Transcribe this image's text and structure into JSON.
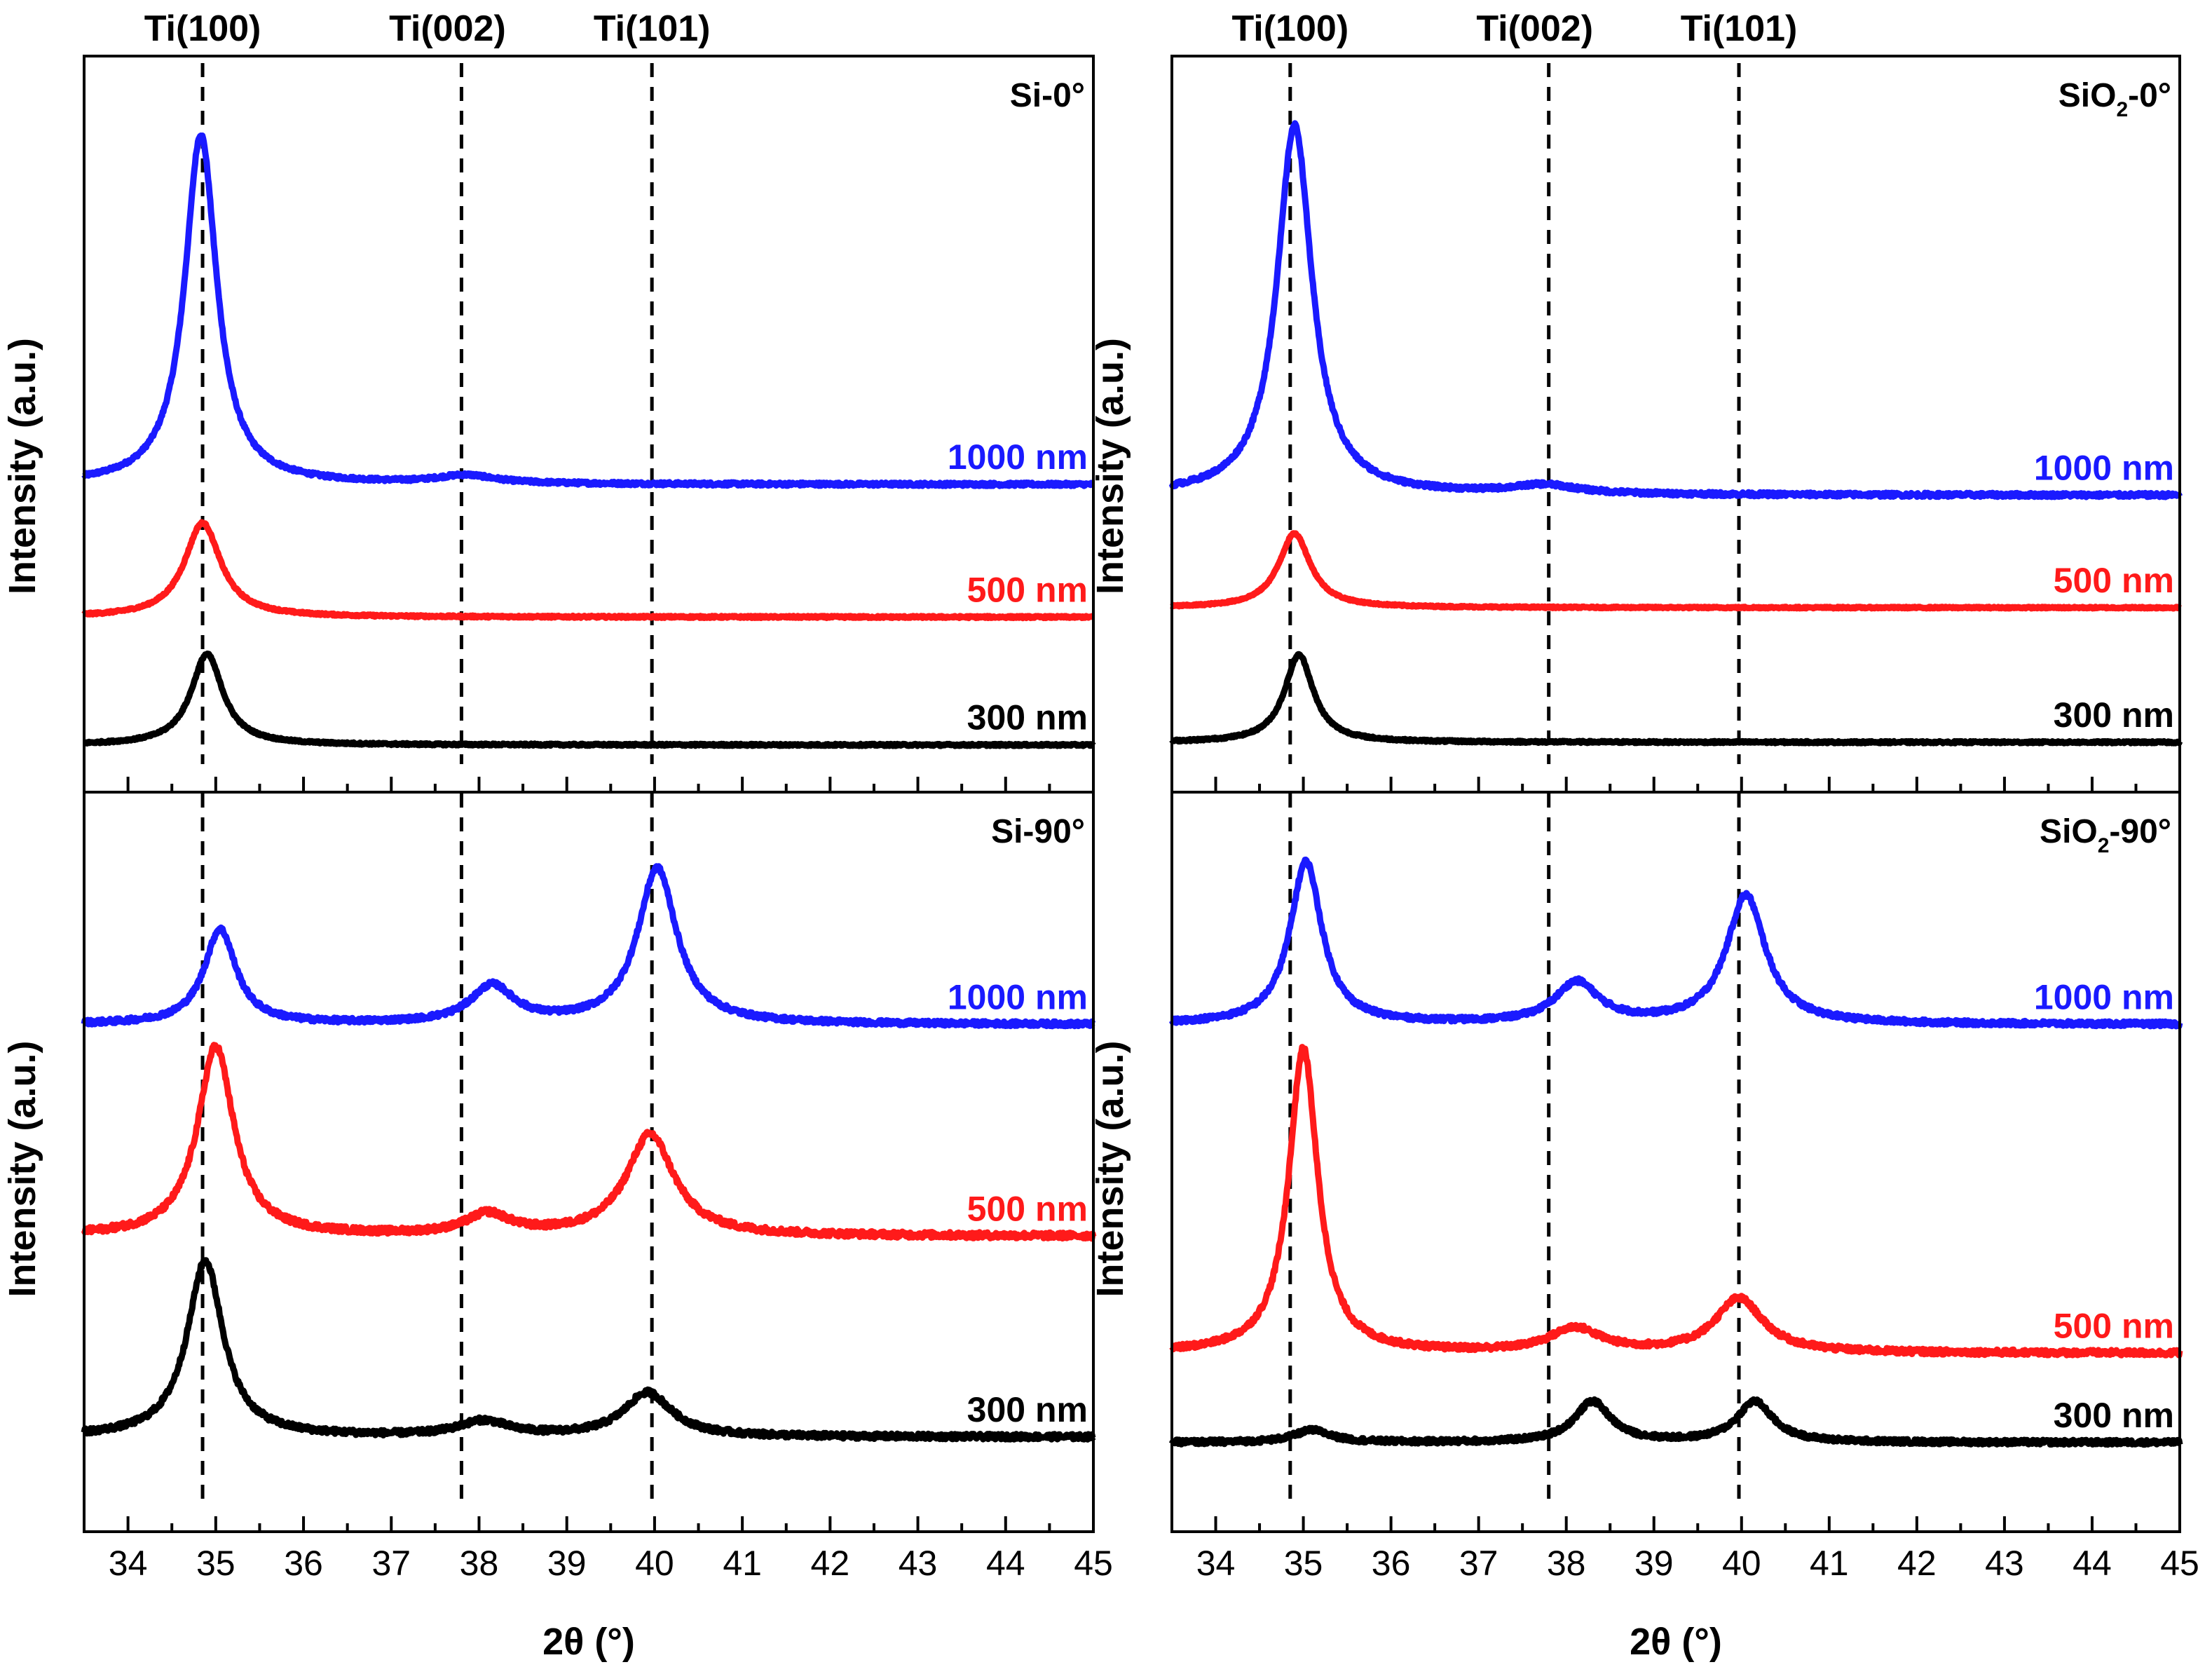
{
  "colors": {
    "1000 nm": "#1a1aff",
    "500 nm": "#ff1a1a",
    "300 nm": "#000000",
    "axis": "#000000",
    "refline": "#000000"
  },
  "reference_peaks": [
    {
      "label": "Ti(100)",
      "two_theta": 34.85
    },
    {
      "label": "Ti(002)",
      "two_theta": 37.8
    },
    {
      "label": "Ti(101)",
      "two_theta": 39.97
    }
  ],
  "shared_axes": {
    "xlabel": "2θ (°)",
    "ylabel": "Intensity (a.u.)",
    "xlim": [
      33.5,
      45
    ],
    "xticks": [
      34,
      35,
      36,
      37,
      38,
      39,
      40,
      41,
      42,
      43,
      44,
      45
    ],
    "y_units": "arbitrary"
  },
  "chart_data": [
    {
      "type": "line",
      "title": "Si-0°",
      "xlabel": "2θ (°)",
      "ylabel": "Intensity (a.u.)",
      "xlim": [
        33.5,
        45
      ],
      "ylim": [
        0,
        100
      ],
      "series": [
        {
          "name": "1000 nm",
          "baseline": 40.5,
          "noise": 0.25,
          "peaks": [
            {
              "center": 34.83,
              "height": 52,
              "width": 0.22
            },
            {
              "center": 37.85,
              "height": 1.2,
              "width": 0.4
            }
          ]
        },
        {
          "name": "500 nm",
          "baseline": 20.8,
          "noise": 0.15,
          "peaks": [
            {
              "center": 34.85,
              "height": 14,
              "width": 0.25
            }
          ]
        },
        {
          "name": "300 nm",
          "baseline": 1.8,
          "noise": 0.15,
          "peaks": [
            {
              "center": 34.9,
              "height": 13.5,
              "width": 0.22
            }
          ]
        }
      ]
    },
    {
      "type": "line",
      "title": "Si-90°",
      "xlabel": "2θ (°)",
      "ylabel": "Intensity (a.u.)",
      "xlim": [
        33.5,
        45
      ],
      "ylim": [
        0,
        100
      ],
      "series": [
        {
          "name": "1000 nm",
          "baseline": 69.8,
          "noise": 0.35,
          "peaks": [
            {
              "center": 35.05,
              "height": 14,
              "width": 0.22
            },
            {
              "center": 38.15,
              "height": 5.5,
              "width": 0.3
            },
            {
              "center": 40.03,
              "height": 23,
              "width": 0.27
            }
          ]
        },
        {
          "name": "500 nm",
          "baseline": 38.5,
          "noise": 0.45,
          "peaks": [
            {
              "center": 35.0,
              "height": 28,
              "width": 0.25
            },
            {
              "center": 38.1,
              "height": 3,
              "width": 0.3
            },
            {
              "center": 39.95,
              "height": 15,
              "width": 0.33
            }
          ]
        },
        {
          "name": "300 nm",
          "baseline": 8.8,
          "noise": 0.4,
          "peaks": [
            {
              "center": 34.88,
              "height": 26,
              "width": 0.25
            },
            {
              "center": 38.05,
              "height": 2.2,
              "width": 0.35
            },
            {
              "center": 39.92,
              "height": 6.5,
              "width": 0.33
            }
          ]
        }
      ]
    },
    {
      "type": "line",
      "title": "SiO₂-0°",
      "xlabel": "2θ (°)",
      "ylabel": "Intensity (a.u.)",
      "xlim": [
        33.5,
        45
      ],
      "ylim": [
        0,
        100
      ],
      "series": [
        {
          "name": "1000 nm",
          "baseline": 38.9,
          "noise": 0.3,
          "peaks": [
            {
              "center": 34.9,
              "height": 55,
              "width": 0.24
            },
            {
              "center": 37.75,
              "height": 1.3,
              "width": 0.45
            }
          ]
        },
        {
          "name": "500 nm",
          "baseline": 22.2,
          "noise": 0.12,
          "peaks": [
            {
              "center": 34.9,
              "height": 11,
              "width": 0.22
            }
          ]
        },
        {
          "name": "300 nm",
          "baseline": 2.2,
          "noise": 0.15,
          "peaks": [
            {
              "center": 34.95,
              "height": 13,
              "width": 0.2
            }
          ]
        }
      ]
    },
    {
      "type": "line",
      "title": "SiO₂-90°",
      "xlabel": "2θ (°)",
      "ylabel": "Intensity (a.u.)",
      "xlim": [
        33.5,
        45
      ],
      "ylim": [
        0,
        100
      ],
      "series": [
        {
          "name": "1000 nm",
          "baseline": 69.8,
          "noise": 0.35,
          "peaks": [
            {
              "center": 35.03,
              "height": 24,
              "width": 0.22
            },
            {
              "center": 38.12,
              "height": 6,
              "width": 0.3
            },
            {
              "center": 40.05,
              "height": 19,
              "width": 0.27
            }
          ]
        },
        {
          "name": "500 nm",
          "baseline": 21.2,
          "noise": 0.4,
          "peaks": [
            {
              "center": 35.0,
              "height": 45,
              "width": 0.2
            },
            {
              "center": 38.1,
              "height": 3.5,
              "width": 0.35
            },
            {
              "center": 39.97,
              "height": 8,
              "width": 0.33
            }
          ]
        },
        {
          "name": "300 nm",
          "baseline": 8.0,
          "noise": 0.35,
          "peaks": [
            {
              "center": 35.1,
              "height": 1.8,
              "width": 0.25
            },
            {
              "center": 38.3,
              "height": 6,
              "width": 0.25
            },
            {
              "center": 40.15,
              "height": 6,
              "width": 0.25
            }
          ]
        }
      ]
    }
  ]
}
